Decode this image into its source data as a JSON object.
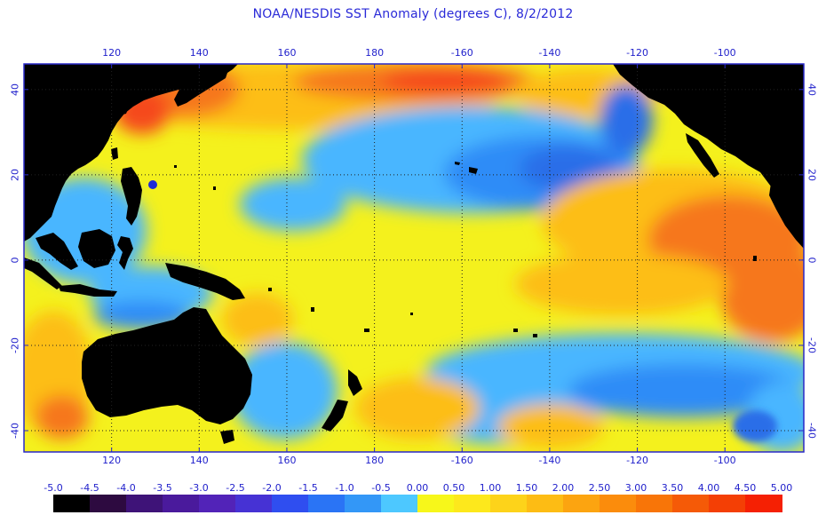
{
  "title": "NOAA/NESDIS SST Anomaly (degrees C), 8/2/2012",
  "longitude_ticks": [
    {
      "value": 120,
      "label": "120"
    },
    {
      "value": 140,
      "label": "140"
    },
    {
      "value": 160,
      "label": "160"
    },
    {
      "value": 180,
      "label": "180"
    },
    {
      "value": 200,
      "label": "-160"
    },
    {
      "value": 220,
      "label": "-140"
    },
    {
      "value": 240,
      "label": "-120"
    },
    {
      "value": 260,
      "label": "-100"
    }
  ],
  "latitude_ticks": [
    {
      "value": 40,
      "label": "40"
    },
    {
      "value": 20,
      "label": "20"
    },
    {
      "value": 0,
      "label": "0"
    },
    {
      "value": -20,
      "label": "-20"
    },
    {
      "value": -40,
      "label": "-40"
    }
  ],
  "map_extent": {
    "lon_min": 100,
    "lon_max": 278,
    "lat_min": -45,
    "lat_max": 46
  },
  "colorbar": {
    "labels": [
      "-5.0",
      "-4.5",
      "-4.0",
      "-3.5",
      "-3.0",
      "-2.5",
      "-2.0",
      "-1.5",
      "-1.0",
      "-0.5",
      "0.00",
      "0.50",
      "1.00",
      "1.50",
      "2.00",
      "2.50",
      "3.00",
      "3.50",
      "4.00",
      "4.50",
      "5.00"
    ],
    "colors": [
      "#000000",
      "#2d0a40",
      "#3e1378",
      "#4a1a9c",
      "#5223b8",
      "#4632d4",
      "#2f4ef0",
      "#2a74f5",
      "#3397f7",
      "#4dc8ff",
      "#f7f71a",
      "#fde81c",
      "#fdd31a",
      "#fdbc14",
      "#fca410",
      "#fb8c0c",
      "#f87508",
      "#f55a07",
      "#f43f05",
      "#f52003"
    ]
  },
  "colors": {
    "land": "#000000",
    "grid": "#222222",
    "frame": "#2828c8",
    "ocean_base": "#f4f11d",
    "warm": "#fdbe12",
    "hot": "#f6771e",
    "very_hot": "#f54a1a",
    "cool": "#49b6ff",
    "cold": "#2d8cf7",
    "very_cold": "#2a6ee8"
  }
}
